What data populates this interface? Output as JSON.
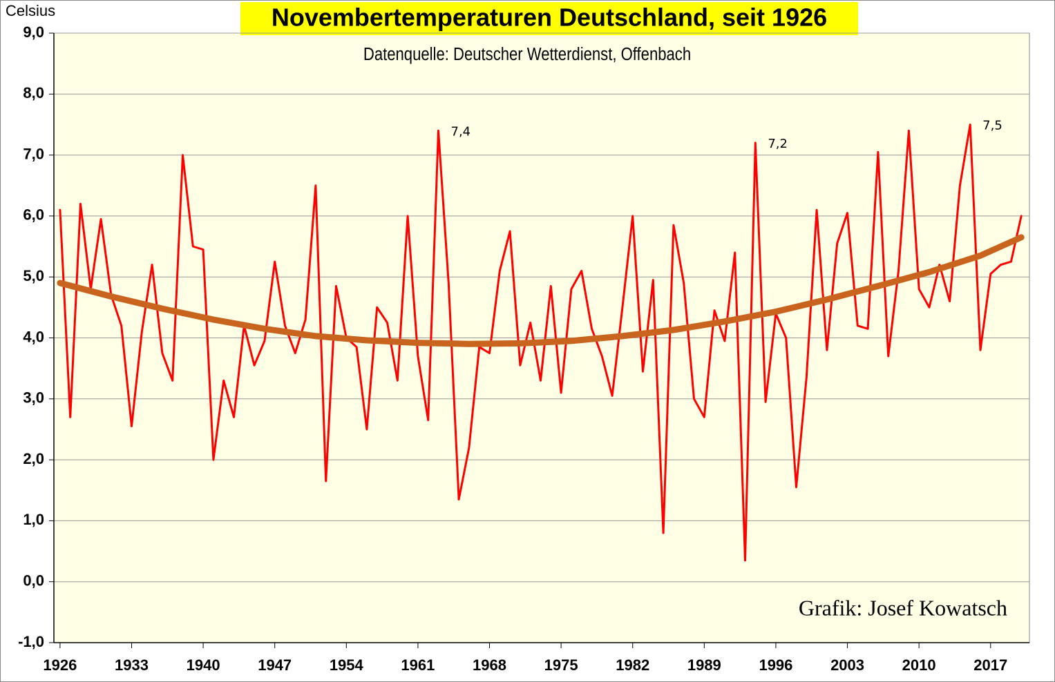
{
  "chart_data": {
    "type": "line",
    "title": "Novembertemperaturen Deutschland, seit 1926",
    "subtitle": "Datenquelle: Deutscher Wetterdienst, Offenbach",
    "y_label": "Celsius",
    "credit": "Grafik: Josef Kowatsch",
    "x": [
      1926,
      1927,
      1928,
      1929,
      1930,
      1931,
      1932,
      1933,
      1934,
      1935,
      1936,
      1937,
      1938,
      1939,
      1940,
      1941,
      1942,
      1943,
      1944,
      1945,
      1946,
      1947,
      1948,
      1949,
      1950,
      1951,
      1952,
      1953,
      1954,
      1955,
      1956,
      1957,
      1958,
      1959,
      1960,
      1961,
      1962,
      1963,
      1964,
      1965,
      1966,
      1967,
      1968,
      1969,
      1970,
      1971,
      1972,
      1973,
      1974,
      1975,
      1976,
      1977,
      1978,
      1979,
      1980,
      1981,
      1982,
      1983,
      1984,
      1985,
      1986,
      1987,
      1988,
      1989,
      1990,
      1991,
      1992,
      1993,
      1994,
      1995,
      1996,
      1997,
      1998,
      1999,
      2000,
      2001,
      2002,
      2003,
      2004,
      2005,
      2006,
      2007,
      2008,
      2009,
      2010,
      2011,
      2012,
      2013,
      2014,
      2015,
      2016,
      2017,
      2018,
      2019,
      2020
    ],
    "series": [
      {
        "color": "#ff0000",
        "values": [
          6.1,
          2.7,
          6.2,
          4.8,
          5.95,
          4.7,
          4.2,
          2.55,
          4.1,
          5.2,
          3.75,
          3.3,
          7.0,
          5.5,
          5.45,
          2.0,
          3.3,
          2.7,
          4.2,
          3.55,
          3.95,
          5.25,
          4.2,
          3.75,
          4.3,
          6.5,
          1.65,
          4.85,
          4.0,
          3.85,
          2.5,
          4.5,
          4.25,
          3.3,
          6.0,
          3.7,
          2.65,
          7.4,
          4.9,
          1.35,
          2.2,
          3.85,
          3.75,
          5.1,
          5.75,
          3.55,
          4.25,
          3.3,
          4.85,
          3.1,
          4.8,
          5.1,
          4.15,
          3.7,
          3.05,
          4.5,
          6.0,
          3.45,
          4.95,
          0.8,
          5.85,
          4.9,
          3.0,
          2.7,
          4.45,
          3.95,
          5.4,
          0.35,
          7.2,
          2.95,
          4.4,
          4.0,
          1.55,
          3.35,
          6.1,
          3.8,
          5.55,
          6.05,
          4.2,
          4.15,
          7.05,
          3.7,
          5.1,
          7.4,
          4.8,
          4.5,
          5.2,
          4.6,
          6.5,
          7.5,
          3.8,
          5.05,
          5.2,
          5.25,
          6.0
        ],
        "value_labels": [
          null,
          null,
          null,
          null,
          null,
          null,
          null,
          null,
          null,
          null,
          null,
          null,
          null,
          null,
          null,
          null,
          null,
          null,
          null,
          null,
          null,
          null,
          null,
          null,
          null,
          null,
          null,
          null,
          null,
          null,
          null,
          null,
          null,
          null,
          null,
          null,
          null,
          "7,4",
          null,
          null,
          null,
          null,
          null,
          null,
          null,
          null,
          null,
          null,
          null,
          null,
          null,
          null,
          null,
          null,
          null,
          null,
          null,
          null,
          null,
          null,
          null,
          null,
          null,
          null,
          null,
          null,
          null,
          null,
          "7,2",
          null,
          null,
          null,
          null,
          null,
          null,
          null,
          null,
          null,
          null,
          null,
          null,
          null,
          null,
          null,
          null,
          null,
          null,
          null,
          null,
          "7,5",
          null,
          null,
          null,
          null,
          null
        ]
      },
      {
        "color": "#c8641e",
        "x": [
          1926,
          1931,
          1936,
          1941,
          1946,
          1951,
          1956,
          1961,
          1966,
          1971,
          1976,
          1981,
          1986,
          1991,
          1996,
          2001,
          2006,
          2011,
          2016,
          2020
        ],
        "values": [
          4.9,
          4.68,
          4.48,
          4.3,
          4.15,
          4.03,
          3.96,
          3.92,
          3.9,
          3.91,
          3.95,
          4.03,
          4.13,
          4.27,
          4.43,
          4.63,
          4.85,
          5.08,
          5.35,
          5.65
        ]
      }
    ],
    "xlim": [
      1925.4,
      2020.8
    ],
    "xticks": [
      1926,
      1933,
      1940,
      1947,
      1954,
      1961,
      1968,
      1975,
      1982,
      1989,
      1996,
      2003,
      2010,
      2017
    ],
    "ylim": [
      -1,
      9
    ],
    "yticks": [
      {
        "value": -1,
        "label": "-1,0"
      },
      {
        "value": 0,
        "label": "0,0"
      },
      {
        "value": 1,
        "label": "1,0"
      },
      {
        "value": 2,
        "label": "2,0"
      },
      {
        "value": 3,
        "label": "3,0"
      },
      {
        "value": 4,
        "label": "4,0"
      },
      {
        "value": 5,
        "label": "5,0"
      },
      {
        "value": 6,
        "label": "6,0"
      },
      {
        "value": 7,
        "label": "7,0"
      },
      {
        "value": 8,
        "label": "8,0"
      },
      {
        "value": 9,
        "label": "9,0"
      }
    ],
    "grid": true,
    "background": "#ffffe6"
  }
}
